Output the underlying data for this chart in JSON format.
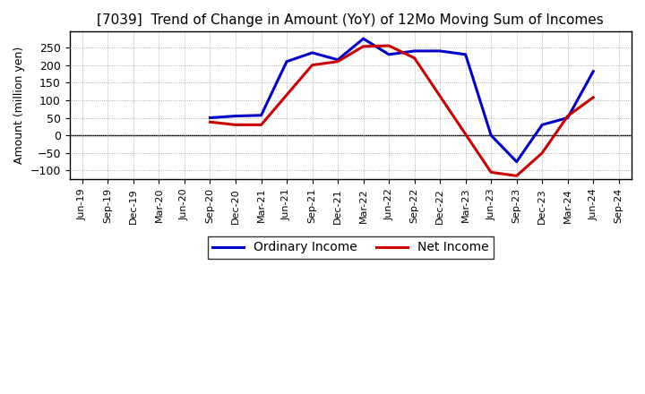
{
  "title": "[7039]  Trend of Change in Amount (YoY) of 12Mo Moving Sum of Incomes",
  "ylabel": "Amount (million yen)",
  "x_labels": [
    "Jun-19",
    "Sep-19",
    "Dec-19",
    "Mar-20",
    "Jun-20",
    "Sep-20",
    "Dec-20",
    "Mar-21",
    "Jun-21",
    "Sep-21",
    "Dec-21",
    "Mar-22",
    "Jun-22",
    "Sep-22",
    "Dec-22",
    "Mar-23",
    "Jun-23",
    "Sep-23",
    "Dec-23",
    "Mar-24",
    "Jun-24",
    "Sep-24"
  ],
  "ordinary_income_x": [
    5,
    6,
    7,
    8,
    9,
    10,
    11,
    12,
    13,
    14,
    15,
    16,
    17,
    18,
    19,
    20
  ],
  "ordinary_income_y": [
    50,
    55,
    57,
    210,
    235,
    215,
    275,
    230,
    240,
    240,
    230,
    0,
    -75,
    30,
    50,
    182
  ],
  "net_income_x": [
    5,
    6,
    7,
    8,
    9,
    10,
    11,
    12,
    13,
    16,
    17,
    18,
    19,
    20
  ],
  "net_income_y": [
    38,
    30,
    30,
    115,
    200,
    210,
    253,
    255,
    220,
    -105,
    -115,
    -50,
    55,
    108
  ],
  "ordinary_color": "#0000cc",
  "net_color": "#cc0000",
  "ylim": [
    -125,
    295
  ],
  "yticks": [
    -100,
    -50,
    0,
    50,
    100,
    150,
    200,
    250
  ],
  "background_color": "#ffffff"
}
